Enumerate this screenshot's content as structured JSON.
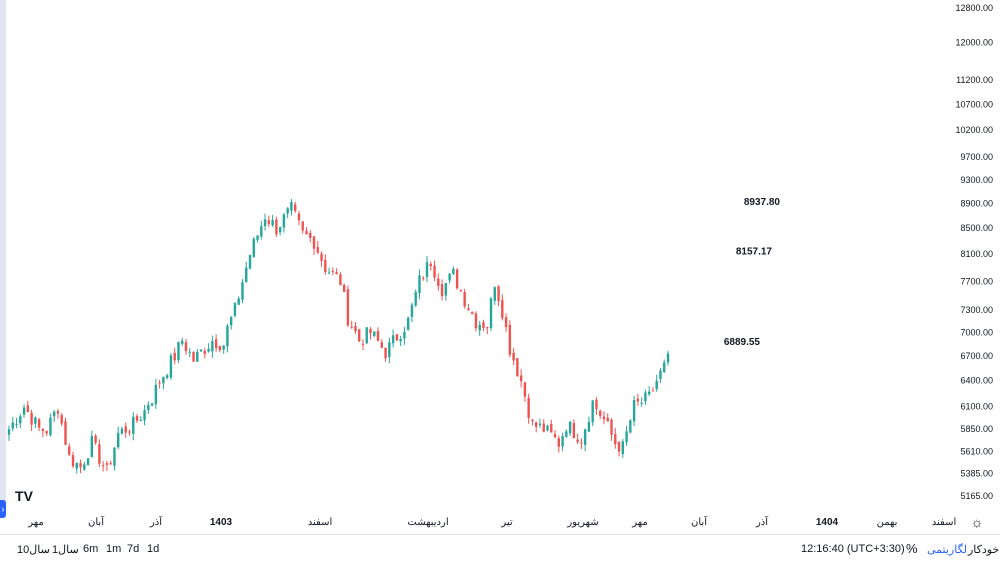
{
  "chart_data": {
    "type": "candlestick",
    "y_axis": {
      "position": "right",
      "scale": "log",
      "ticks": [
        "12800.00",
        "12000.00",
        "11200.00",
        "10700.00",
        "10200.00",
        "9700.00",
        "9300.00",
        "8900.00",
        "8500.00",
        "8100.00",
        "7700.00",
        "7300.00",
        "7000.00",
        "6700.00",
        "6400.00",
        "6100.00",
        "5850.00",
        "5610.00",
        "5385.00",
        "5165.00"
      ]
    },
    "x_axis": {
      "labels": [
        "مهر",
        "آبان",
        "آذر",
        "1403",
        "اسفند",
        "اردیبهشت",
        "تیر",
        "شهریور",
        "مهر",
        "آبان",
        "آذر",
        "1404",
        "بهمن",
        "اسفند"
      ],
      "bold": [
        "1403",
        "1404"
      ]
    },
    "annotations": [
      {
        "text": "8937.80",
        "value": 8937.8
      },
      {
        "text": "8157.17",
        "value": 8157.17
      },
      {
        "text": "6889.55",
        "value": 6889.55
      }
    ],
    "up_color": "#26a69a",
    "down_color": "#ef5350",
    "anchors": [
      [
        0,
        5850
      ],
      [
        4,
        6100
      ],
      [
        8,
        5850
      ],
      [
        10,
        5840
      ],
      [
        13,
        6100
      ],
      [
        16,
        5550
      ],
      [
        19,
        5450
      ],
      [
        22,
        5700
      ],
      [
        26,
        5400
      ],
      [
        29,
        5800
      ],
      [
        33,
        5900
      ],
      [
        36,
        6050
      ],
      [
        37,
        6150
      ],
      [
        38,
        6200
      ],
      [
        40,
        6400
      ],
      [
        44,
        6700
      ],
      [
        46,
        6900
      ],
      [
        49,
        6650
      ],
      [
        54,
        6900
      ],
      [
        57,
        6850
      ],
      [
        58,
        7050
      ],
      [
        60,
        7300
      ],
      [
        62,
        7700
      ],
      [
        64,
        8100
      ],
      [
        68,
        8700
      ],
      [
        71,
        8500
      ],
      [
        75,
        8800
      ],
      [
        78,
        8400
      ],
      [
        81,
        8300
      ],
      [
        84,
        7900
      ],
      [
        88,
        7700
      ],
      [
        90,
        7200
      ],
      [
        93,
        6900
      ],
      [
        96,
        7000
      ],
      [
        100,
        6750
      ],
      [
        103,
        6950
      ],
      [
        106,
        7150
      ],
      [
        109,
        7700
      ],
      [
        112,
        8000
      ],
      [
        115,
        7600
      ],
      [
        118,
        7800
      ],
      [
        121,
        7450
      ],
      [
        124,
        7150
      ],
      [
        127,
        7100
      ],
      [
        129,
        7700
      ],
      [
        131,
        7300
      ],
      [
        133,
        6800
      ],
      [
        136,
        6400
      ],
      [
        139,
        5900
      ],
      [
        142,
        5850
      ],
      [
        146,
        5700
      ],
      [
        148,
        5900
      ],
      [
        152,
        5750
      ],
      [
        155,
        6150
      ],
      [
        158,
        5950
      ],
      [
        161,
        5700
      ],
      [
        163,
        5650
      ],
      [
        166,
        6100
      ],
      [
        170,
        6200
      ],
      [
        172,
        6400
      ],
      [
        175,
        6650
      ]
    ]
  },
  "ui": {
    "bottom": {
      "ranges": [
        "1d",
        "7d",
        "1m",
        "6m",
        "1سال",
        "10سال"
      ],
      "time": "12:16:40 (UTC+3:30)",
      "percent": "%",
      "log": "لگاریتمی",
      "auto": "خودکار"
    },
    "logo": "TV",
    "handle_icon": "chevron-right-icon",
    "settings_icon": "gear-icon"
  }
}
